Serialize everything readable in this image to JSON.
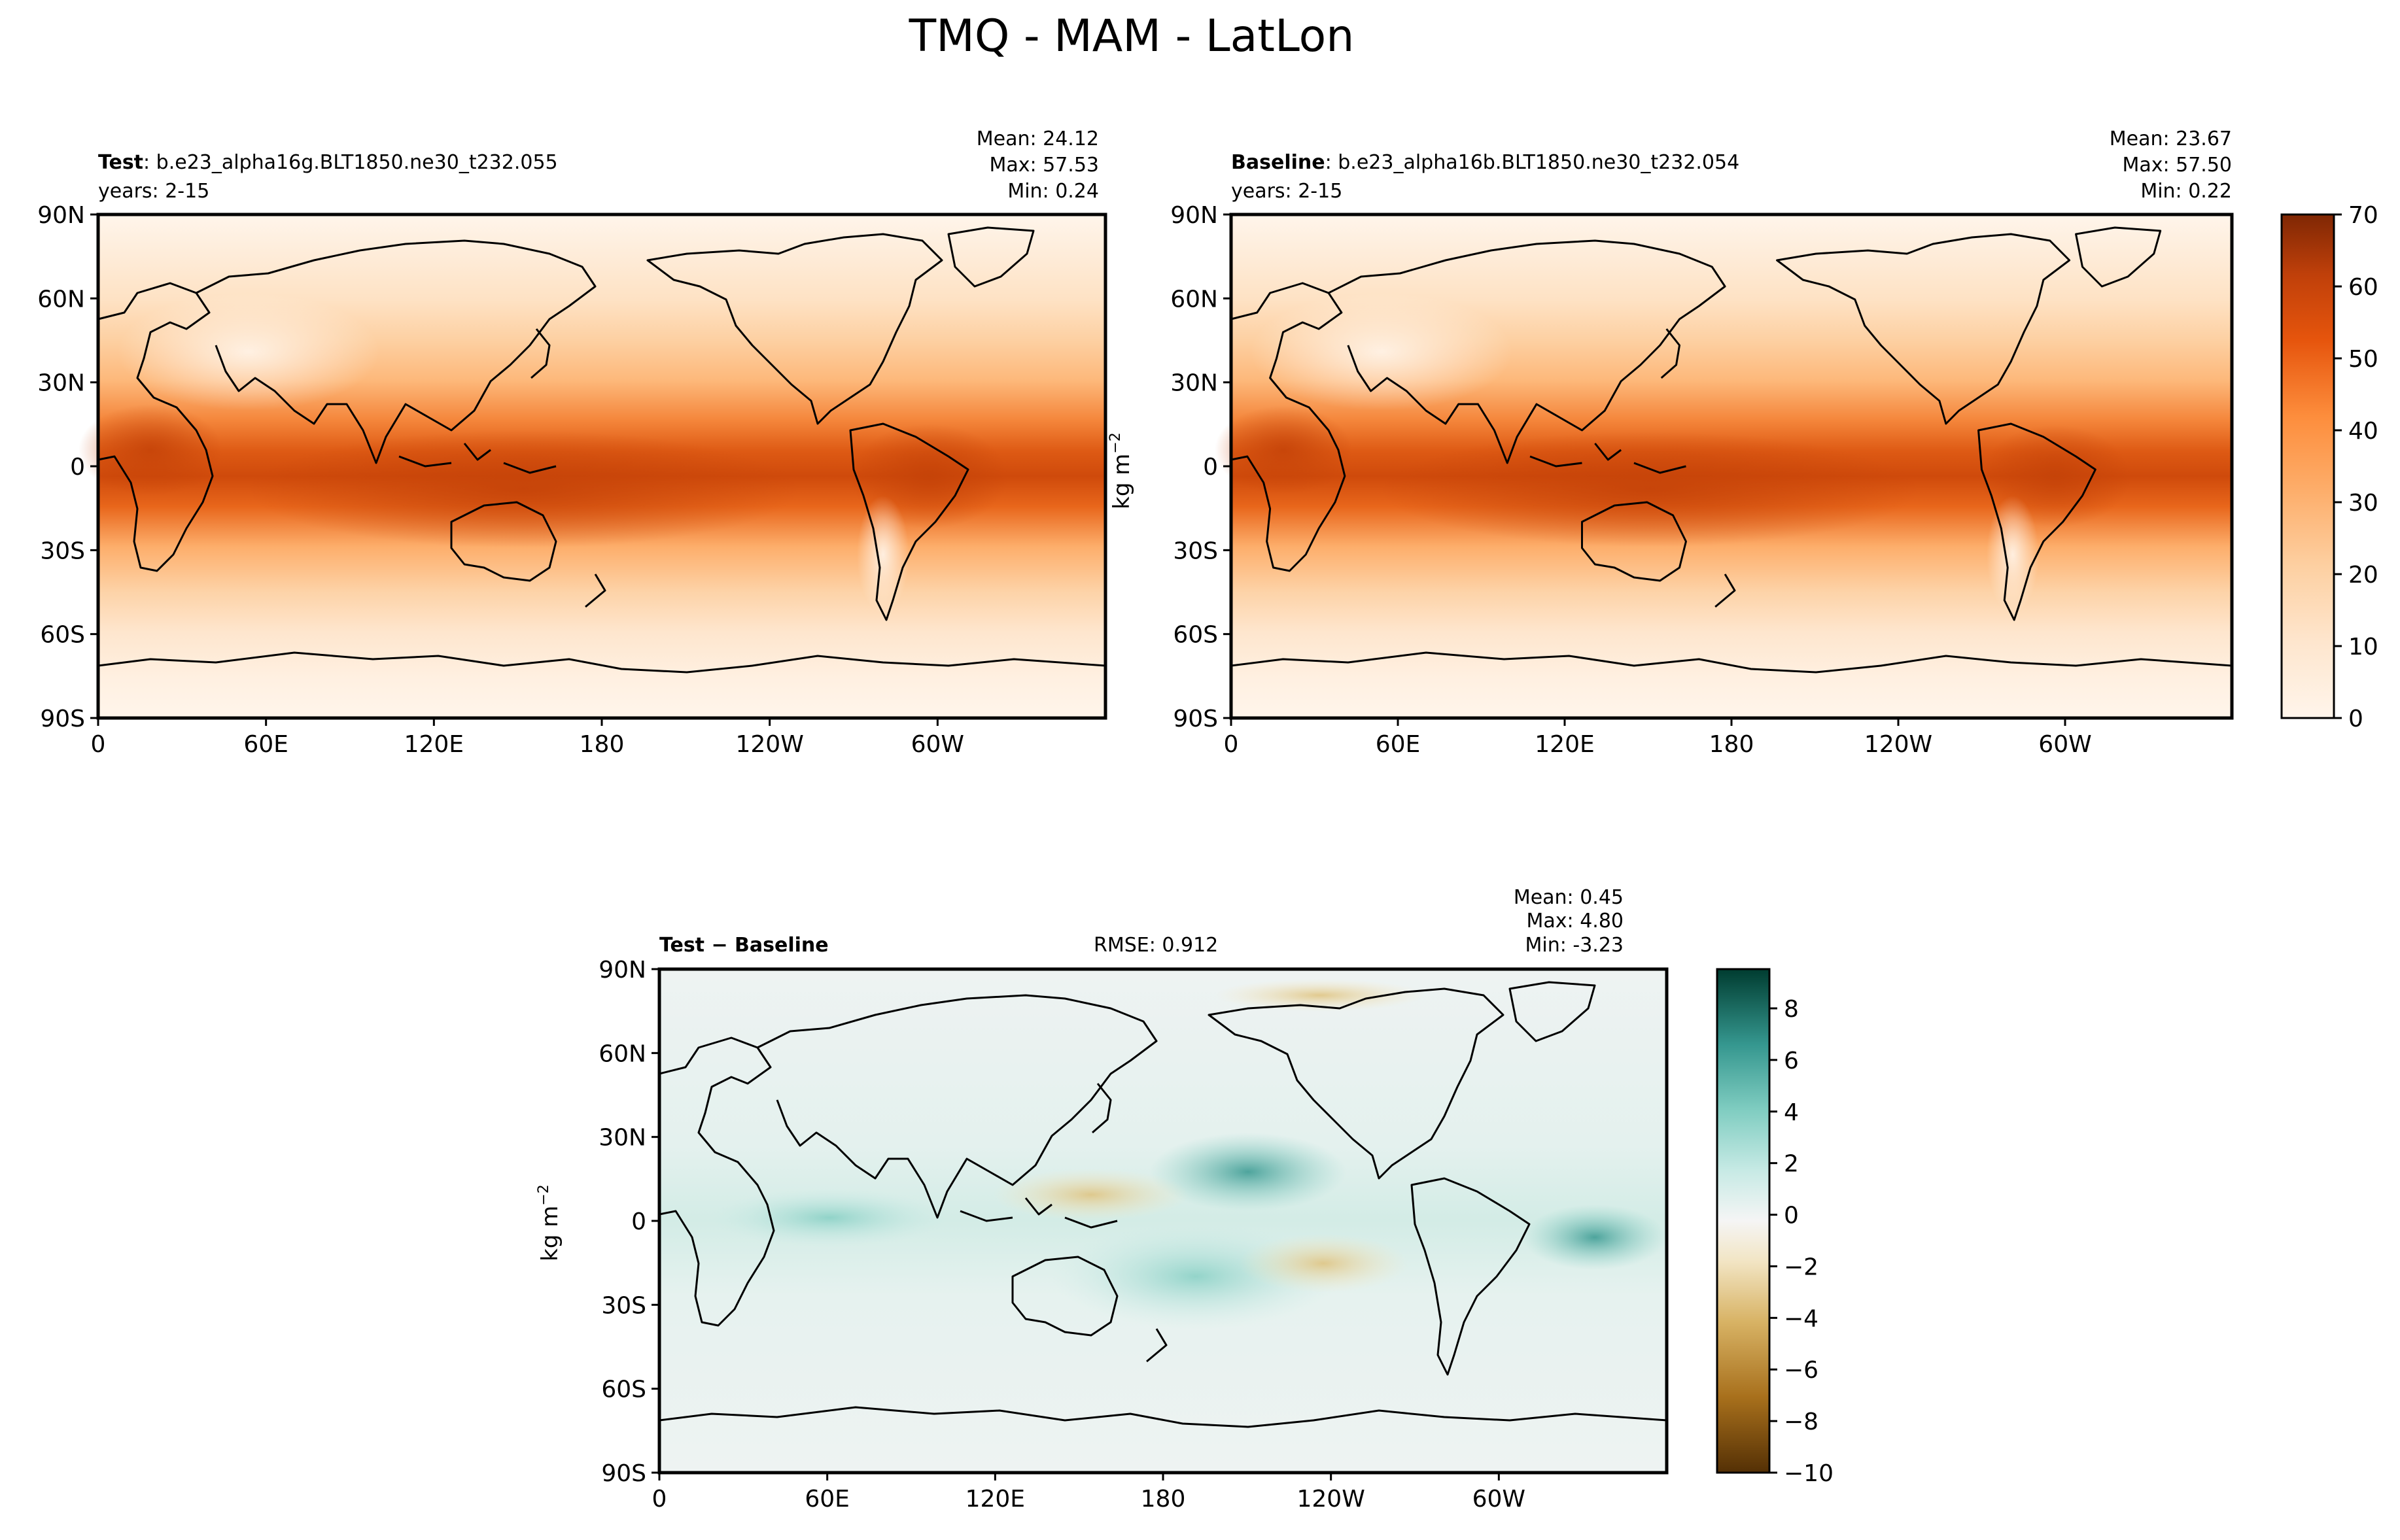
{
  "figure": {
    "title": "TMQ - MAM - LatLon"
  },
  "chart_data": [
    {
      "type": "heatmap",
      "panel": "test",
      "label_bold": "Test",
      "case": ": b.e23_alpha16g.BLT1850.ne30_t232.055",
      "years": "years: 2-15",
      "stats": [
        "Mean: 24.12",
        "Max: 57.53",
        "Min:  0.24"
      ],
      "x_ticks": [
        "0",
        "60E",
        "120E",
        "180",
        "120W",
        "60W"
      ],
      "y_ticks": [
        "90N",
        "60N",
        "30N",
        "0",
        "30S",
        "60S",
        "90S"
      ],
      "colormap": "Oranges",
      "value_range": [
        0,
        70
      ],
      "zonal_profile": [
        {
          "lat": 90,
          "value": 2
        },
        {
          "lat": 75,
          "value": 4
        },
        {
          "lat": 60,
          "value": 8
        },
        {
          "lat": 45,
          "value": 12
        },
        {
          "lat": 30,
          "value": 20
        },
        {
          "lat": 15,
          "value": 36
        },
        {
          "lat": 5,
          "value": 48
        },
        {
          "lat": -5,
          "value": 50
        },
        {
          "lat": -15,
          "value": 40
        },
        {
          "lat": -30,
          "value": 22
        },
        {
          "lat": -45,
          "value": 13
        },
        {
          "lat": -60,
          "value": 7
        },
        {
          "lat": -75,
          "value": 2
        },
        {
          "lat": -90,
          "value": 1
        }
      ]
    },
    {
      "type": "heatmap",
      "panel": "baseline",
      "label_bold": "Baseline",
      "case": ": b.e23_alpha16b.BLT1850.ne30_t232.054",
      "years": "years: 2-15",
      "stats": [
        "Mean: 23.67",
        "Max: 57.50",
        "Min:  0.22"
      ],
      "x_ticks": [
        "0",
        "60E",
        "120E",
        "180",
        "120W",
        "60W"
      ],
      "y_ticks": [
        "90N",
        "60N",
        "30N",
        "0",
        "30S",
        "60S",
        "90S"
      ],
      "ylabel": "kg m",
      "ylabel_sup": "−2",
      "colormap": "Oranges",
      "value_range": [
        0,
        70
      ],
      "colorbar_ticks": [
        "0",
        "10",
        "20",
        "30",
        "40",
        "50",
        "60",
        "70"
      ]
    },
    {
      "type": "heatmap",
      "panel": "difference",
      "label_bold": "Test − Baseline",
      "rmse": "RMSE: 0.912",
      "stats": [
        "Mean:  0.45",
        "Max:  4.80",
        "Min: -3.23"
      ],
      "x_ticks": [
        "0",
        "60E",
        "120E",
        "180",
        "120W",
        "60W"
      ],
      "y_ticks": [
        "90N",
        "60N",
        "30N",
        "0",
        "30S",
        "60S",
        "90S"
      ],
      "ylabel": "kg m",
      "ylabel_sup": "−2",
      "colormap": "BrBG",
      "value_range": [
        -10,
        10
      ],
      "colorbar_ticks": [
        "8",
        "6",
        "4",
        "2",
        "0",
        "−2",
        "−4",
        "−6",
        "−8",
        "−10"
      ]
    }
  ]
}
